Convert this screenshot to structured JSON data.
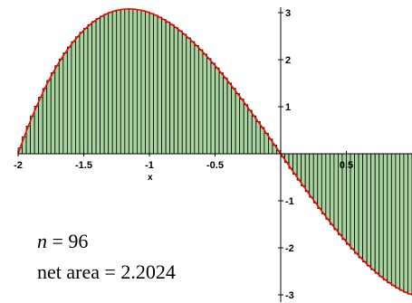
{
  "chart_data": {
    "type": "bar",
    "title": "",
    "function": "x^3 - 4x",
    "xlabel": "x",
    "ylabel": "",
    "xlim": [
      -2,
      1
    ],
    "ylim": [
      -3,
      3
    ],
    "x_ticks": [
      "-2",
      "-1.5",
      "-1",
      "-0.5",
      "0.5"
    ],
    "y_ticks": [
      "3",
      "2",
      "1",
      "-1",
      "-2",
      "-3"
    ],
    "x_tick_values": [
      -2,
      -1.5,
      -1,
      -0.5,
      0.5
    ],
    "y_tick_values": [
      3,
      2,
      1,
      -1,
      -2,
      -3
    ],
    "num_rectangles": 96,
    "rect_interval": [
      -2,
      1
    ],
    "series": [
      {
        "name": "",
        "kind": "bars",
        "color": "#a8d4a0",
        "edge_color": "#000000"
      },
      {
        "name": "",
        "kind": "curve",
        "color": "#ff0000"
      }
    ],
    "annotations": {
      "n_var": "n",
      "n_rest": " = 96",
      "net_area": "net area = 2.2024"
    }
  }
}
